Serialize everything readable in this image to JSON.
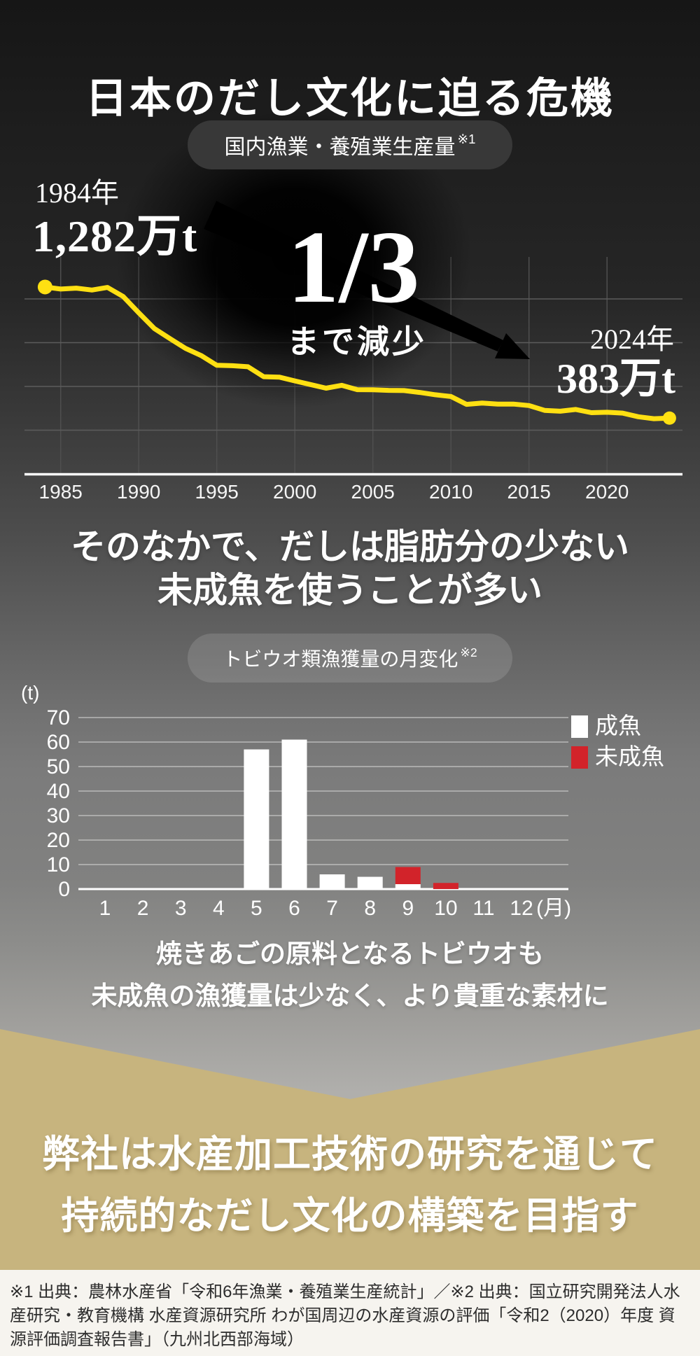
{
  "page": {
    "title": "日本のだし文化に迫る危機"
  },
  "subtitle": {
    "line1": "そのなかで、だしは脂肪分の少ない",
    "line2": "未成魚を使うことが多い"
  },
  "caption": {
    "line1": "焼きあごの原料となるトビウオも",
    "line2": "未成魚の漁獲量は少なく、より貴重な素材に"
  },
  "statement": {
    "line1": "弊社は水産加工技術の研究を通じて",
    "line2": "持続的なだし文化の構築を目指す"
  },
  "footer": {
    "text": "※1 出典：農林水産省「令和6年漁業・養殖業生産統計」／※2 出典：国立研究開発法人水産研究・教育機構 水産資源研究所 わが国周辺の水産資源の評価「令和2（2020）年度 資源評価調査報告書」（九州北西部海域）"
  },
  "colors": {
    "accent_yellow": "#ffe012",
    "accent_red": "#d2232a",
    "gold_section": "#c7b47e",
    "badge_dark": "#383838",
    "footer_bg": "#f6f4ef"
  },
  "chart_data": [
    {
      "type": "line",
      "title": "国内漁業・養殖業生産量",
      "title_ref": "※1",
      "unit": "万t",
      "x": [
        1984,
        1985,
        1986,
        1987,
        1988,
        1989,
        1990,
        1991,
        1992,
        1993,
        1994,
        1995,
        1996,
        1997,
        1998,
        1999,
        2000,
        2001,
        2002,
        2003,
        2004,
        2005,
        2006,
        2007,
        2008,
        2009,
        2010,
        2011,
        2012,
        2013,
        2014,
        2015,
        2016,
        2017,
        2018,
        2019,
        2020,
        2021,
        2022,
        2023,
        2024
      ],
      "values": [
        1282,
        1268,
        1274,
        1261,
        1279,
        1217,
        1105,
        997,
        928,
        861,
        812,
        745,
        742,
        735,
        667,
        664,
        638,
        613,
        588,
        608,
        578,
        577,
        573,
        572,
        559,
        543,
        531,
        477,
        486,
        479,
        479,
        469,
        436,
        430,
        442,
        420,
        423,
        417,
        392,
        379,
        383
      ],
      "xticks": [
        1985,
        1990,
        1995,
        2000,
        2005,
        2010,
        2015,
        2020
      ],
      "ygrid_values": [
        300,
        600,
        900,
        1200
      ],
      "line_color": "#ffe012",
      "grid": true,
      "legend_position": "none",
      "annotations": {
        "start_year": "1984年",
        "start_value": "1,282万t",
        "end_year": "2024年",
        "end_value": "383万t",
        "callout_fraction": "1/3",
        "callout_caption": "まで減少"
      }
    },
    {
      "type": "bar",
      "stacked": true,
      "title": "トビウオ類漁獲量の月変化",
      "title_ref": "※2",
      "unit": "(t)",
      "categories": [
        1,
        2,
        3,
        4,
        5,
        6,
        7,
        8,
        9,
        10,
        11,
        12
      ],
      "category_suffix": "(月)",
      "series": [
        {
          "name": "成魚",
          "color": "#ffffff",
          "values": [
            0,
            0,
            0,
            0,
            57,
            61,
            6,
            5,
            2,
            0,
            0,
            0
          ]
        },
        {
          "name": "未成魚",
          "color": "#d2232a",
          "values": [
            0,
            0,
            0,
            0,
            0,
            0,
            0,
            0,
            7,
            2.5,
            0,
            0
          ]
        }
      ],
      "yticks": [
        0,
        10,
        20,
        30,
        40,
        50,
        60,
        70
      ],
      "ylim": [
        0,
        70
      ],
      "grid": true,
      "legend_position": "right"
    }
  ]
}
